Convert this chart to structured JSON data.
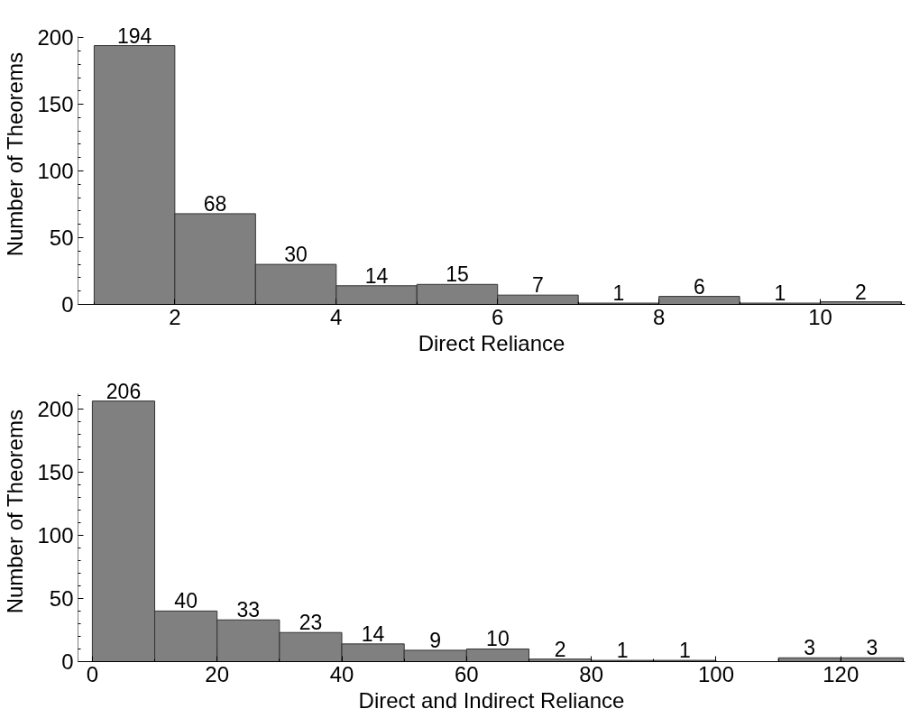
{
  "chart_data": [
    {
      "type": "histogram",
      "xlabel": "Direct Reliance",
      "ylabel": "Number of Theorems",
      "bins": [
        1,
        2,
        3,
        4,
        5,
        6,
        7,
        8,
        9,
        10,
        11
      ],
      "values": [
        194,
        68,
        30,
        14,
        15,
        7,
        1,
        6,
        1,
        2
      ],
      "color": "#808080",
      "data_labels": true,
      "grid": false,
      "xlim": [
        0.8,
        11.05
      ],
      "ylim": [
        0,
        201
      ],
      "xticks": [
        {
          "value": 1,
          "label": null
        },
        2,
        {
          "value": 3,
          "label": null
        },
        4,
        {
          "value": 5,
          "label": null
        },
        6,
        {
          "value": 7,
          "label": null
        },
        8,
        {
          "value": 9,
          "label": null
        },
        10,
        {
          "value": 11,
          "label": null
        }
      ],
      "yticks": [
        0,
        {
          "value": 10,
          "label": null
        },
        {
          "value": 20,
          "label": null
        },
        {
          "value": 30,
          "label": null
        },
        {
          "value": 40,
          "label": null
        },
        50,
        {
          "value": 60,
          "label": null
        },
        {
          "value": 70,
          "label": null
        },
        {
          "value": 80,
          "label": null
        },
        {
          "value": 90,
          "label": null
        },
        100,
        {
          "value": 110,
          "label": null
        },
        {
          "value": 120,
          "label": null
        },
        {
          "value": 130,
          "label": null
        },
        {
          "value": 140,
          "label": null
        },
        150,
        {
          "value": 160,
          "label": null
        },
        {
          "value": 170,
          "label": null
        },
        {
          "value": 180,
          "label": null
        },
        {
          "value": 190,
          "label": null
        },
        200
      ]
    },
    {
      "type": "histogram",
      "xlabel": "Direct and Indirect Reliance",
      "ylabel": "Number of Theorems",
      "bins": [
        0,
        10,
        20,
        30,
        40,
        50,
        60,
        70,
        80,
        90,
        100,
        110,
        120,
        130
      ],
      "values": [
        206,
        40,
        33,
        23,
        14,
        9,
        10,
        2,
        1,
        1,
        0,
        3,
        3
      ],
      "color": "#808080",
      "grid": false,
      "value_labels": [
        "206",
        "40",
        "33",
        "23",
        "14",
        "9",
        "10",
        "2",
        "1",
        "1",
        null,
        "3",
        "3"
      ],
      "xlim": [
        -2.3,
        130.3
      ],
      "ylim": [
        0,
        212
      ],
      "xticks": [
        0,
        {
          "value": 10,
          "label": null
        },
        20,
        {
          "value": 30,
          "label": null
        },
        40,
        {
          "value": 50,
          "label": null
        },
        60,
        {
          "value": 70,
          "label": null
        },
        80,
        {
          "value": 90,
          "label": null
        },
        100,
        {
          "value": 110,
          "label": null
        },
        120,
        {
          "value": 130,
          "label": null
        }
      ],
      "yticks": [
        0,
        {
          "value": 10,
          "label": null
        },
        {
          "value": 20,
          "label": null
        },
        {
          "value": 30,
          "label": null
        },
        {
          "value": 40,
          "label": null
        },
        50,
        {
          "value": 60,
          "label": null
        },
        {
          "value": 70,
          "label": null
        },
        {
          "value": 80,
          "label": null
        },
        {
          "value": 90,
          "label": null
        },
        100,
        {
          "value": 110,
          "label": null
        },
        {
          "value": 120,
          "label": null
        },
        {
          "value": 130,
          "label": null
        },
        {
          "value": 140,
          "label": null
        },
        150,
        {
          "value": 160,
          "label": null
        },
        {
          "value": 170,
          "label": null
        },
        {
          "value": 180,
          "label": null
        },
        {
          "value": 190,
          "label": null
        },
        200,
        {
          "value": 210,
          "label": null
        }
      ]
    }
  ]
}
